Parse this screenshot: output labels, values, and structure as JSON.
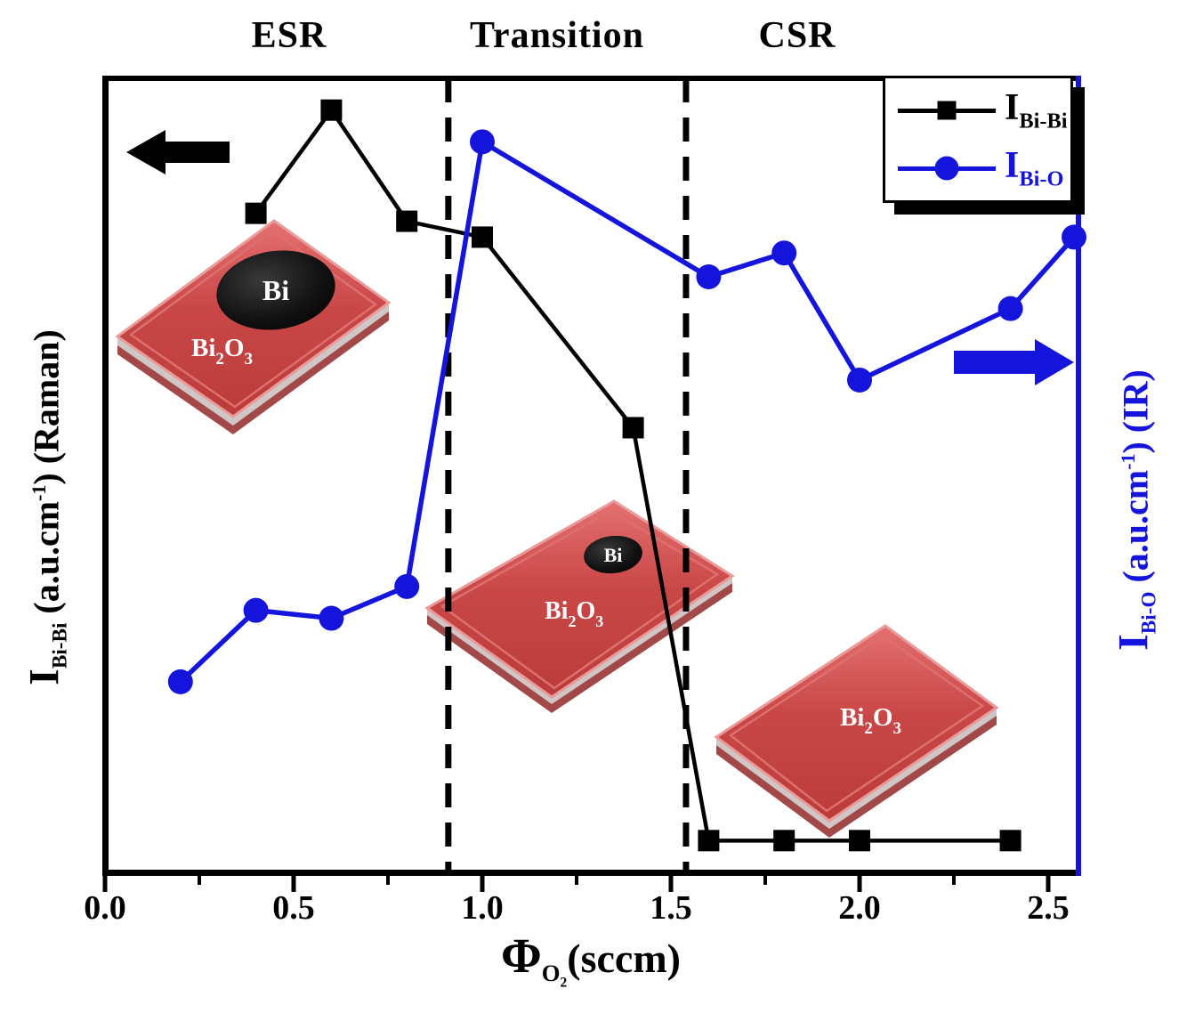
{
  "colors": {
    "black": "#000000",
    "blue": "#1414dd",
    "slab_red_light": "#e06767",
    "slab_red": "#c84343",
    "slab_red_dark": "#a34848",
    "slab_rim": "#eb9a9a",
    "slab_stripe_gray": "#cfc6c6"
  },
  "labels": {
    "regions": [
      {
        "label": "ESR"
      },
      {
        "label": "Transition"
      },
      {
        "label": "CSR"
      }
    ],
    "y_left": {
      "i": "I",
      "sub": "Bi-Bi",
      "mid": " (a.u.cm",
      "exp": "-1",
      "close": ") (Raman)"
    },
    "y_right": {
      "i": "I",
      "sub": "Bi-O",
      "mid": " (a.u.cm",
      "exp": "-1",
      "close": ") (IR)"
    },
    "x_axis": {
      "phi": "Φ",
      "sub_o": "O",
      "sub_2": "2",
      "unit": "(sccm)"
    },
    "legend_entries": [
      {
        "i": "I",
        "sub": "Bi-Bi",
        "marker": "square",
        "color": "#000000"
      },
      {
        "i": "I",
        "sub": "Bi-O",
        "marker": "circle",
        "color": "#1414dd"
      }
    ],
    "insets": [
      {
        "sphere": "Bi",
        "formula": {
          "bi": "Bi",
          "n2": "2",
          "o": "O",
          "n3": "3"
        }
      },
      {
        "sphere": "Bi",
        "formula": {
          "bi": "Bi",
          "n2": "2",
          "o": "O",
          "n3": "3"
        }
      },
      {
        "formula": {
          "bi": "Bi",
          "n2": "2",
          "o": "O",
          "n3": "3"
        }
      }
    ]
  },
  "chart_data": {
    "type": "line",
    "title": "",
    "xlabel": "Phi_O2 (sccm)",
    "ylabel_left": "I_Bi-Bi (a.u.cm^-1) (Raman)",
    "ylabel_right": "I_Bi-O (a.u.cm^-1) (IR)",
    "x_range": [
      0.0,
      2.59
    ],
    "ylim": [
      0,
      1
    ],
    "y_units": "arbitrary units, normalized 0-1 (no numeric y ticks shown)",
    "grid": false,
    "legend_position": "top-right",
    "regions": [
      "ESR",
      "Transition",
      "CSR"
    ],
    "region_boundaries_x": [
      0.91,
      1.54
    ],
    "x_ticks": {
      "values": [
        0.0,
        0.5,
        1.0,
        1.5,
        2.0,
        2.5
      ],
      "labels": [
        "0.0",
        "0.5",
        "1.0",
        "1.5",
        "2.0",
        "2.5"
      ],
      "minor_values": [
        0.25,
        0.75,
        1.25,
        1.75,
        2.25
      ]
    },
    "series": [
      {
        "name": "I_Bi-Bi",
        "axis": "left",
        "color": "#000000",
        "marker": "square",
        "x": [
          0.4,
          0.6,
          0.8,
          1.0,
          1.4,
          1.6,
          1.8,
          2.0,
          2.4
        ],
        "y": [
          0.83,
          0.96,
          0.82,
          0.8,
          0.56,
          0.04,
          0.04,
          0.04,
          0.04
        ]
      },
      {
        "name": "I_Bi-O",
        "axis": "right",
        "color": "#1414dd",
        "marker": "circle",
        "x": [
          0.2,
          0.4,
          0.6,
          0.8,
          1.0,
          1.6,
          1.8,
          2.0,
          2.4,
          2.6
        ],
        "y": [
          0.24,
          0.33,
          0.32,
          0.36,
          0.92,
          0.75,
          0.78,
          0.62,
          0.71,
          0.8
        ]
      }
    ]
  }
}
